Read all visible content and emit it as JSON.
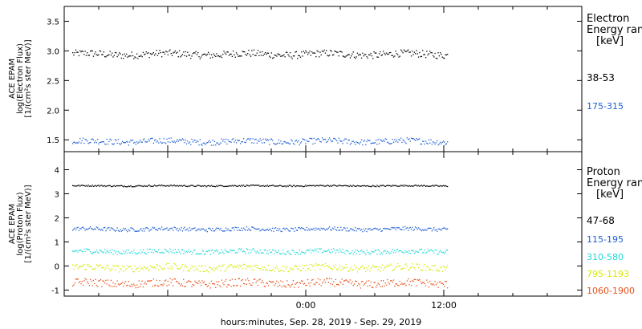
{
  "chart_data": [
    {
      "type": "scatter",
      "ylabel": [
        "ACE EPAM",
        "log(Electron Flux)",
        "[1/(cm²s ster MeV)]"
      ],
      "ylim": [
        1.3,
        3.75
      ],
      "yticks": [
        "1.5",
        "2.0",
        "2.5",
        "3.0",
        "3.5"
      ],
      "ytick_values": [
        1.5,
        2.0,
        2.5,
        3.0,
        3.5
      ],
      "legend_title": [
        "Electron",
        "Energy ran",
        "[keV]"
      ],
      "series": [
        {
          "name": "38-53",
          "color": "#000000",
          "level": 2.95,
          "spread": 0.06,
          "start_hour": -20.3,
          "end_hour": 12.3
        },
        {
          "name": "175-315",
          "color": "#1f5fd6",
          "level": 1.48,
          "spread": 0.05,
          "start_hour": -20.3,
          "end_hour": 12.3
        }
      ]
    },
    {
      "type": "scatter",
      "ylabel": [
        "ACE EPAM",
        "log(Proton Flux)",
        "[1/(cm²s ster MeV)]"
      ],
      "ylim": [
        -1.25,
        4.75
      ],
      "yticks": [
        "-1",
        "0",
        "1",
        "2",
        "3",
        "4"
      ],
      "ytick_values": [
        -1,
        0,
        1,
        2,
        3,
        4
      ],
      "legend_title": [
        "Proton",
        "Energy ran",
        "[keV]"
      ],
      "series": [
        {
          "name": "47-68",
          "color": "#000000",
          "level": 3.35,
          "spread": 0.03,
          "start_hour": -20.3,
          "end_hour": 12.3
        },
        {
          "name": "115-195",
          "color": "#1f5fd6",
          "level": 1.55,
          "spread": 0.08,
          "start_hour": -20.3,
          "end_hour": 12.3
        },
        {
          "name": "310-580",
          "color": "#22d8d8",
          "level": 0.62,
          "spread": 0.1,
          "start_hour": -20.3,
          "end_hour": 12.3
        },
        {
          "name": "795-1193",
          "color": "#d8e800",
          "level": -0.05,
          "spread": 0.14,
          "start_hour": -20.3,
          "end_hour": 12.3
        },
        {
          "name": "1060-1900",
          "color": "#e8501a",
          "level": -0.7,
          "spread": 0.16,
          "start_hour": -20.3,
          "end_hour": 12.3
        }
      ]
    }
  ],
  "x_axis": {
    "xlabel": "hours:minutes, Sep. 28, 2019 - Sep. 29, 2019",
    "xlim_hours": [
      -21,
      24
    ],
    "major_ticks": [
      {
        "hour": 0,
        "label": "0:00"
      },
      {
        "hour": 12,
        "label": "12:00"
      }
    ],
    "minor_tick_step_hours": 3
  }
}
